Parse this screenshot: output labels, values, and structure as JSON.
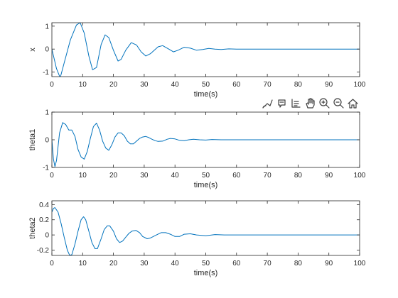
{
  "colors": {
    "series": "#0072BD",
    "axis": "#262626",
    "background": "#ffffff",
    "icon": "#404040"
  },
  "toolbar": {
    "icons": [
      "brush-icon",
      "data-tips-icon",
      "pan-icon",
      "zoom-in-icon",
      "zoom-out-icon",
      "home-icon"
    ]
  },
  "chart_data": [
    {
      "type": "line",
      "xlabel": "time(s)",
      "ylabel": "x",
      "xlim": [
        0,
        100
      ],
      "ylim": [
        -1.2,
        1.15
      ],
      "xticks": [
        0,
        10,
        20,
        30,
        40,
        50,
        60,
        70,
        80,
        90,
        100
      ],
      "yticks": [
        -1,
        0,
        1
      ],
      "grid": false,
      "series": [
        {
          "x": [
            0,
            1.5,
            2.7,
            4,
            6,
            8,
            9.2,
            10.5,
            12,
            13.2,
            14.5,
            16,
            17.3,
            18.5,
            20,
            21.5,
            22.5,
            24,
            25.8,
            27.5,
            29,
            30.5,
            32,
            34.5,
            36,
            38,
            39.5,
            41,
            43,
            45,
            47,
            49,
            51,
            53,
            55,
            57.5,
            60,
            65,
            70,
            80,
            90,
            100
          ],
          "y": [
            0,
            -0.85,
            -1.25,
            -0.6,
            0.4,
            1.05,
            1.15,
            0.7,
            -0.3,
            -0.9,
            -0.8,
            0.2,
            0.62,
            0.5,
            -0.05,
            -0.52,
            -0.45,
            -0.05,
            0.28,
            0.18,
            -0.12,
            -0.3,
            -0.2,
            0.1,
            0.15,
            0.0,
            -0.12,
            -0.05,
            0.08,
            0.04,
            -0.05,
            -0.02,
            0.03,
            0.0,
            -0.02,
            0.01,
            0.0,
            0.0,
            0.0,
            0.0,
            0.0,
            0.0
          ]
        }
      ]
    },
    {
      "type": "line",
      "xlabel": "time(s)",
      "ylabel": "theta1",
      "xlim": [
        0,
        100
      ],
      "ylim": [
        -1,
        1
      ],
      "xticks": [
        0,
        10,
        20,
        30,
        40,
        50,
        60,
        70,
        80,
        90,
        100
      ],
      "yticks": [
        -1,
        0,
        1
      ],
      "grid": false,
      "series": [
        {
          "x": [
            0,
            0.5,
            1,
            1.5,
            2.5,
            3.5,
            4.5,
            5.5,
            6.5,
            7.5,
            8.5,
            9.5,
            10.5,
            11.5,
            12.5,
            13.5,
            14.5,
            15.5,
            16.5,
            17.5,
            18.5,
            19.5,
            20.5,
            21.5,
            22.5,
            23.5,
            24.5,
            25.5,
            26.5,
            27.5,
            28.5,
            29.5,
            30.5,
            31.5,
            32.5,
            33.5,
            34.5,
            36,
            37.5,
            38.5,
            40,
            41.5,
            43,
            44.5,
            46,
            48,
            50,
            52,
            55,
            58,
            62,
            70,
            80,
            90,
            100
          ],
          "y": [
            0,
            -0.7,
            -0.97,
            -0.75,
            0.25,
            0.62,
            0.55,
            0.35,
            0.35,
            0.12,
            -0.35,
            -0.62,
            -0.7,
            -0.42,
            0.05,
            0.48,
            0.6,
            0.35,
            -0.05,
            -0.3,
            -0.38,
            -0.18,
            0.1,
            0.25,
            0.25,
            0.15,
            -0.05,
            -0.15,
            -0.15,
            -0.05,
            0.05,
            0.1,
            0.12,
            0.08,
            0.02,
            -0.03,
            -0.06,
            -0.05,
            0.02,
            0.05,
            0.03,
            -0.02,
            -0.03,
            0.0,
            0.02,
            0.0,
            -0.01,
            0.01,
            0.0,
            0.0,
            0.0,
            0.0,
            0.0,
            0.0,
            0.0
          ]
        }
      ]
    },
    {
      "type": "line",
      "xlabel": "time(s)",
      "ylabel": "theta2",
      "xlim": [
        0,
        100
      ],
      "ylim": [
        -0.27,
        0.45
      ],
      "xticks": [
        0,
        10,
        20,
        30,
        40,
        50,
        60,
        70,
        80,
        90,
        100
      ],
      "yticks": [
        -0.2,
        0,
        0.2,
        0.4
      ],
      "grid": false,
      "series": [
        {
          "x": [
            0,
            0.5,
            1,
            2,
            3,
            4,
            5,
            5.8,
            6.5,
            7.5,
            8.5,
            9.5,
            10.3,
            11,
            12,
            13,
            14,
            14.8,
            16,
            17,
            18,
            18.8,
            20,
            21,
            22,
            23,
            24,
            25,
            26,
            27.3,
            28.5,
            29.5,
            31,
            32,
            34,
            35.5,
            37,
            38.5,
            40,
            41.5,
            43,
            45,
            47,
            50,
            53,
            56,
            60,
            70,
            80,
            90,
            100
          ],
          "y": [
            0.3,
            0.35,
            0.36,
            0.3,
            0.15,
            -0.03,
            -0.2,
            -0.27,
            -0.26,
            -0.12,
            0.05,
            0.2,
            0.24,
            0.2,
            0.05,
            -0.1,
            -0.18,
            -0.18,
            -0.05,
            0.07,
            0.12,
            0.12,
            0.05,
            -0.05,
            -0.1,
            -0.08,
            -0.03,
            0.02,
            0.05,
            0.06,
            0.03,
            -0.02,
            -0.05,
            -0.04,
            0.0,
            0.03,
            0.03,
            0.01,
            -0.02,
            -0.02,
            0.01,
            0.015,
            0.0,
            -0.01,
            0.005,
            0.0,
            0.0,
            0.0,
            0.0,
            0.0,
            0.0
          ]
        }
      ]
    }
  ]
}
